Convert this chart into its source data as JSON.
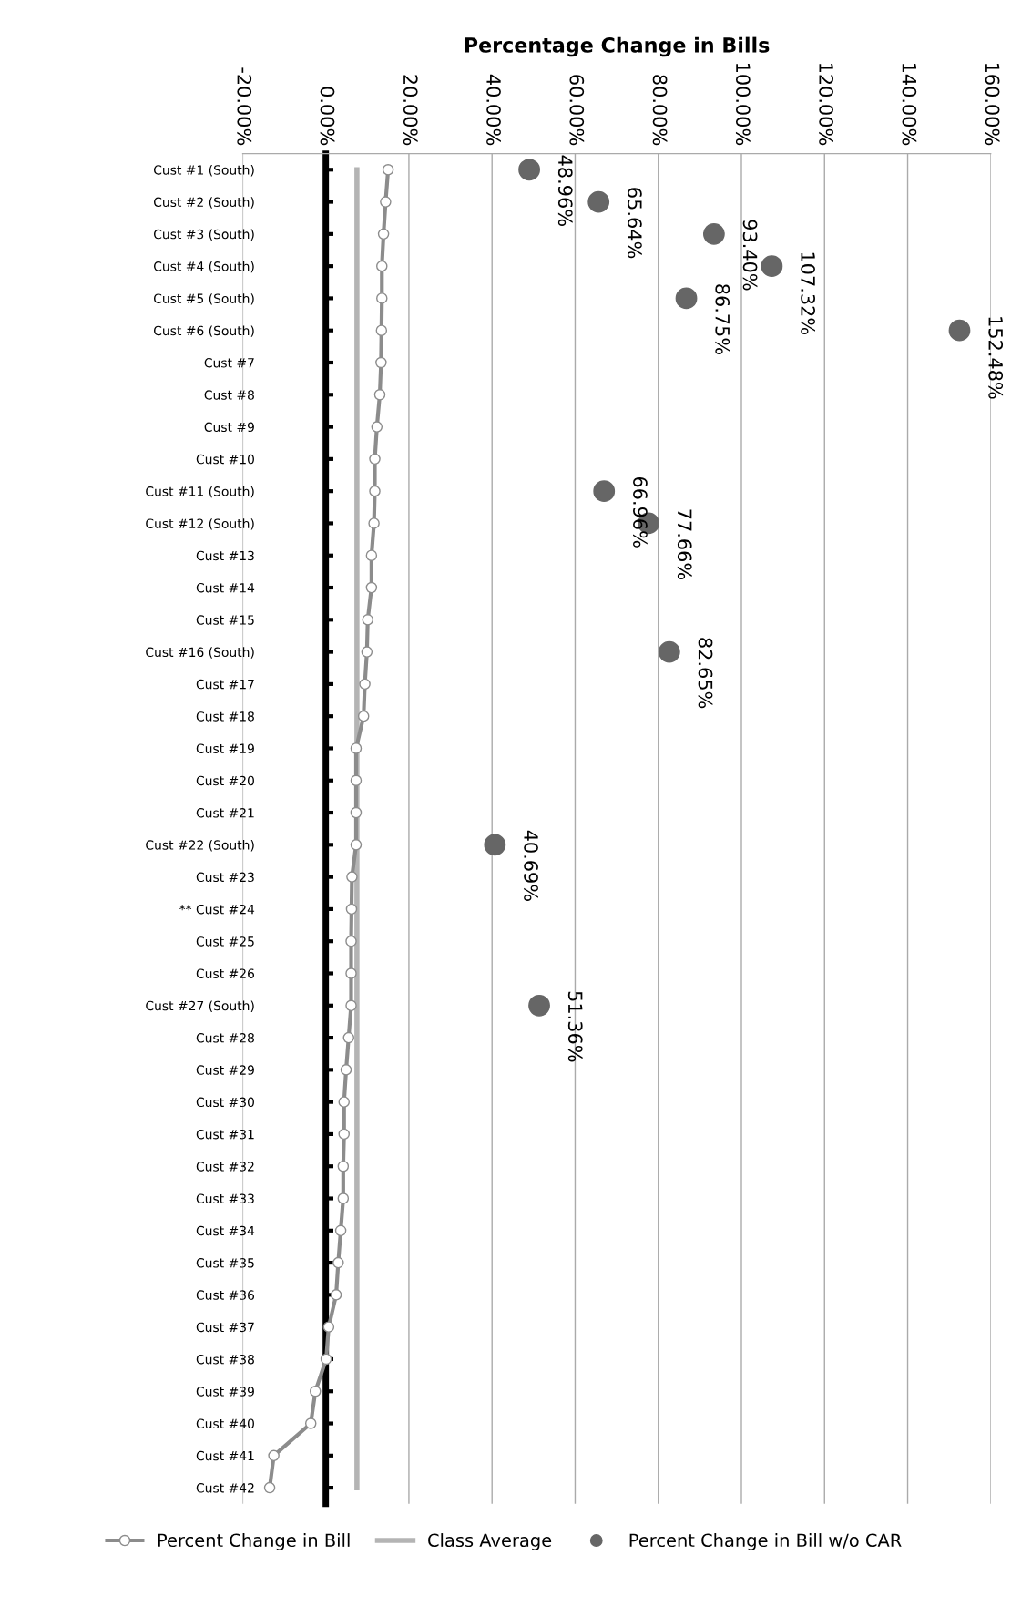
{
  "chart_data": {
    "type": "line",
    "orientation": "horizontal",
    "title": "Percentage Change in Bills",
    "categories": [
      "Cust #1 (South)",
      "Cust #2 (South)",
      "Cust #3 (South)",
      "Cust #4 (South)",
      "Cust #5 (South)",
      "Cust #6 (South)",
      "Cust #7",
      "Cust #8",
      "Cust #9",
      "Cust #10",
      "Cust #11 (South)",
      "Cust #12 (South)",
      "Cust #13",
      "Cust #14",
      "Cust #15",
      "Cust #16 (South)",
      "Cust #17",
      "Cust #18",
      "Cust #19",
      "Cust #20",
      "Cust #21",
      "Cust #22 (South)",
      "Cust #23",
      "** Cust #24",
      "Cust #25",
      "Cust #26",
      "Cust #27 (South)",
      "Cust #28",
      "Cust #29",
      "Cust #30",
      "Cust #31",
      "Cust #32",
      "Cust #33",
      "Cust #34",
      "Cust #35",
      "Cust #36",
      "Cust #37",
      "Cust #38",
      "Cust #39",
      "Cust #40",
      "Cust #41",
      "Cust #42"
    ],
    "series": [
      {
        "name": "Percent Change in Bill",
        "type": "line",
        "color": "#8c8c8c",
        "marker": "circle",
        "values": [
          15.0,
          14.4,
          13.9,
          13.5,
          13.5,
          13.4,
          13.3,
          13.0,
          12.3,
          11.8,
          11.8,
          11.6,
          11.0,
          11.0,
          10.1,
          9.9,
          9.4,
          9.1,
          7.3,
          7.3,
          7.3,
          7.3,
          6.3,
          6.2,
          6.1,
          6.1,
          6.1,
          5.5,
          4.9,
          4.4,
          4.4,
          4.2,
          4.2,
          3.6,
          3.0,
          2.5,
          0.7,
          0.1,
          -2.5,
          -3.6,
          -12.5,
          -13.5
        ]
      },
      {
        "name": "Class Average",
        "type": "line",
        "color": "#b4b4b4",
        "marker": "none",
        "values": [
          7.5,
          7.5,
          7.5,
          7.5,
          7.5,
          7.5,
          7.5,
          7.5,
          7.5,
          7.5,
          7.5,
          7.5,
          7.5,
          7.5,
          7.5,
          7.5,
          7.5,
          7.5,
          7.5,
          7.5,
          7.5,
          7.5,
          7.5,
          7.5,
          7.5,
          7.5,
          7.5,
          7.5,
          7.5,
          7.5,
          7.5,
          7.5,
          7.5,
          7.5,
          7.5,
          7.5,
          7.5,
          7.5,
          7.5,
          7.5,
          7.5,
          7.5
        ]
      },
      {
        "name": "Percent Change in Bill w/o CAR",
        "type": "scatter",
        "color": "#666666",
        "marker": "circle",
        "values": [
          48.96,
          65.64,
          93.4,
          107.32,
          86.75,
          152.48,
          null,
          null,
          null,
          null,
          66.96,
          77.66,
          null,
          null,
          null,
          82.65,
          null,
          null,
          null,
          null,
          null,
          40.69,
          null,
          null,
          null,
          null,
          51.36,
          null,
          null,
          null,
          null,
          null,
          null,
          null,
          null,
          null,
          null,
          null,
          null,
          null,
          null,
          null
        ],
        "value_labels": [
          "48.96%",
          "65.64%",
          "93.40%",
          "107.32%",
          "86.75%",
          "152.48%",
          null,
          null,
          null,
          null,
          "66.96%",
          "77.66%",
          null,
          null,
          null,
          "82.65%",
          null,
          null,
          null,
          null,
          null,
          "40.69%",
          null,
          null,
          null,
          null,
          "51.36%",
          null,
          null,
          null,
          null,
          null,
          null,
          null,
          null,
          null,
          null,
          null,
          null,
          null,
          null,
          null
        ]
      }
    ],
    "xlim": [
      -20,
      160
    ],
    "xticks": [
      {
        "value": -20,
        "label": "-20.00%"
      },
      {
        "value": 0,
        "label": "0.00%"
      },
      {
        "value": 20,
        "label": "20.00%"
      },
      {
        "value": 40,
        "label": "40.00%"
      },
      {
        "value": 60,
        "label": "60.00%"
      },
      {
        "value": 80,
        "label": "80.00%"
      },
      {
        "value": 100,
        "label": "100.00%"
      },
      {
        "value": 120,
        "label": "120.00%"
      },
      {
        "value": 140,
        "label": "140.00%"
      },
      {
        "value": 160,
        "label": "160.00%"
      }
    ],
    "grid": "x",
    "legend": "bottom"
  }
}
